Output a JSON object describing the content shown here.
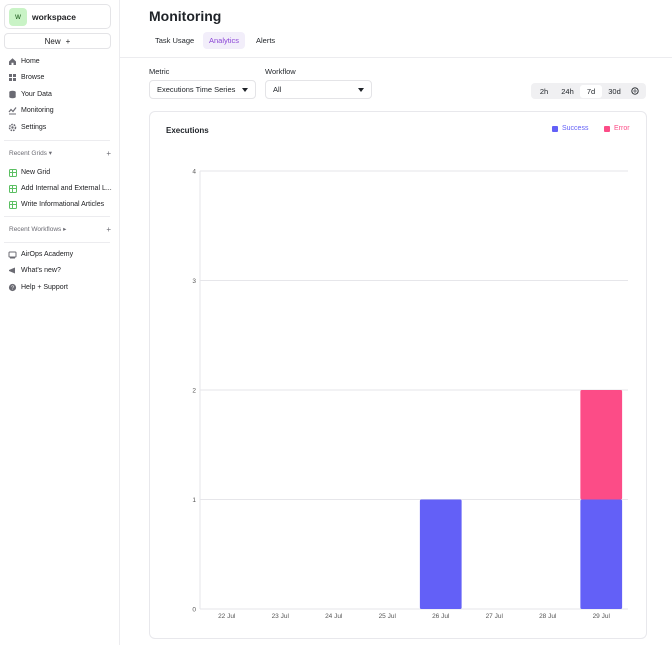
{
  "workspace": {
    "avatar": "w",
    "name": "workspace"
  },
  "new_button": {
    "label": "New",
    "icon": "+"
  },
  "nav": [
    {
      "label": "Home",
      "icon": "home-icon"
    },
    {
      "label": "Browse",
      "icon": "grid-icon"
    },
    {
      "label": "Your Data",
      "icon": "database-icon"
    },
    {
      "label": "Monitoring",
      "icon": "monitor-icon"
    },
    {
      "label": "Settings",
      "icon": "gear-icon"
    }
  ],
  "recent_grids": {
    "label": "Recent Grids",
    "items": [
      "New Grid",
      "Add Internal and External L...",
      "Write Informational Articles"
    ]
  },
  "recent_workflows": {
    "label": "Recent Workflows"
  },
  "footer_nav": [
    {
      "label": "AirOps Academy",
      "icon": "book-icon"
    },
    {
      "label": "What's new?",
      "icon": "megaphone-icon"
    },
    {
      "label": "Help + Support",
      "icon": "help-icon"
    }
  ],
  "page": {
    "title": "Monitoring",
    "tabs": [
      "Task Usage",
      "Analytics",
      "Alerts"
    ],
    "active_tab": "Analytics"
  },
  "filters": {
    "metric_label": "Metric",
    "metric_value": "Executions Time Series",
    "workflow_label": "Workflow",
    "workflow_value": "All"
  },
  "time_range": {
    "options": [
      "2h",
      "24h",
      "7d",
      "30d"
    ],
    "selected": "7d"
  },
  "colors": {
    "success": "#6360f7",
    "error": "#fc4c87",
    "accent": "#8b45d6"
  },
  "chart_data": {
    "type": "bar",
    "stacked": true,
    "title": "Executions",
    "categories": [
      "22 Jul",
      "23 Jul",
      "24 Jul",
      "25 Jul",
      "26 Jul",
      "27 Jul",
      "28 Jul",
      "29 Jul"
    ],
    "series": [
      {
        "name": "Success",
        "color": "#6360f7",
        "values": [
          0,
          0,
          0,
          0,
          1,
          0,
          0,
          1
        ]
      },
      {
        "name": "Error",
        "color": "#fc4c87",
        "values": [
          0,
          0,
          0,
          0,
          0,
          0,
          0,
          1
        ]
      }
    ],
    "ylim": [
      0,
      4
    ],
    "yticks": [
      0,
      1,
      2,
      3,
      4
    ],
    "grid": true,
    "legend": "top-right"
  }
}
